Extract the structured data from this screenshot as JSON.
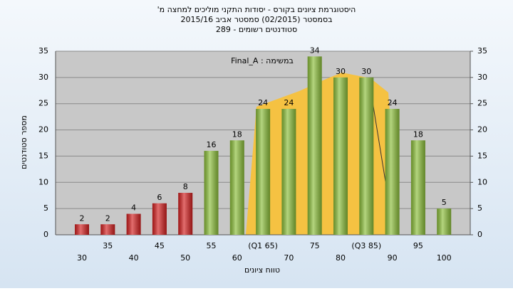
{
  "chart_data": {
    "type": "bar",
    "title": "היסטוגרמת ציונים בקורס - יסודות התקני מוליכים למחצה מ'",
    "subtitle": "בסמסטר  (02/2015)  סמסטר אביב 2015/16",
    "subtitle2": "סטודנטים רשומים - 289",
    "annotation": "במשימה : Final_A",
    "x_label": "טווח ציונים",
    "y_label": "מספר סטודנטים",
    "categories": [
      "30",
      "35",
      "40",
      "45",
      "50",
      "55",
      "60",
      "(Q1 65)",
      "70",
      "75",
      "80",
      "(Q3 85)",
      "90",
      "95",
      "100"
    ],
    "values": [
      2,
      2,
      4,
      6,
      8,
      16,
      18,
      24,
      24,
      34,
      30,
      30,
      24,
      18,
      5
    ],
    "colors": [
      "#d42020",
      "#d42020",
      "#d42020",
      "#d42020",
      "#d42020",
      "#8cbf3a",
      "#8cbf3a",
      "#8cbf3a",
      "#8cbf3a",
      "#8cbf3a",
      "#8cbf3a",
      "#8cbf3a",
      "#8cbf3a",
      "#8cbf3a",
      "#8cbf3a"
    ],
    "ylim": [
      0,
      35
    ],
    "yticks": [
      0,
      5,
      10,
      15,
      20,
      25,
      30,
      35
    ],
    "y2lim": [
      0,
      35
    ],
    "y2ticks": [
      0,
      5,
      10,
      15,
      20,
      25,
      30,
      35
    ],
    "grid": true
  }
}
